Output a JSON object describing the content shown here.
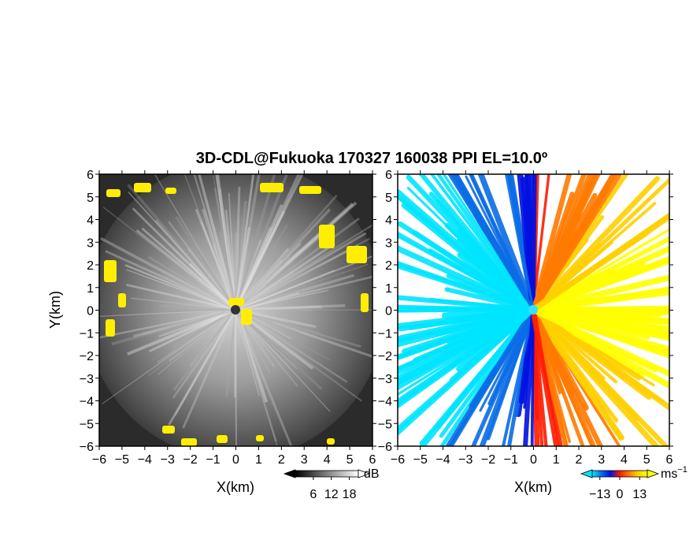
{
  "title": "3D-CDL@Fukuoka 170327 160038 PPI EL=10.0º",
  "chart_data": [
    {
      "type": "heatmap",
      "panel": "left",
      "quantity": "reflectivity / SNR field",
      "xlabel": "X(km)",
      "ylabel": "Y(km)",
      "xlim": [
        -6,
        6
      ],
      "ylim": [
        -6,
        6
      ],
      "xticks": [
        "−6",
        "−5",
        "−4",
        "−3",
        "−2",
        "−1",
        "0",
        "1",
        "2",
        "3",
        "4",
        "5",
        "6"
      ],
      "yticks": [
        "−6",
        "−5",
        "−4",
        "−3",
        "−2",
        "−1",
        "0",
        "1",
        "2",
        "3",
        "4",
        "5",
        "6"
      ],
      "colorbar": {
        "ticks": [
          "6",
          "12",
          "18"
        ],
        "tick_values": [
          6,
          12,
          18
        ],
        "unit": "dB",
        "range": [
          0,
          21
        ],
        "colors": [
          "#000000",
          "#ffffff"
        ]
      },
      "highlight_color": "#ffee00"
    },
    {
      "type": "heatmap",
      "panel": "right",
      "quantity": "radial velocity",
      "xlabel": "X(km)",
      "ylabel": "",
      "xlim": [
        -6,
        6
      ],
      "ylim": [
        -6,
        6
      ],
      "xticks": [
        "−6",
        "−5",
        "−4",
        "−3",
        "−2",
        "−1",
        "0",
        "1",
        "2",
        "3",
        "4",
        "5",
        "6"
      ],
      "yticks": [
        "−6",
        "−5",
        "−4",
        "−3",
        "−2",
        "−1",
        "0",
        "1",
        "2",
        "3",
        "4",
        "5",
        "6"
      ],
      "colorbar": {
        "ticks": [
          "−13",
          "0",
          "13"
        ],
        "tick_values": [
          -13,
          0,
          13
        ],
        "unit": "ms",
        "unit_exp": "−1",
        "range": [
          -18,
          18
        ],
        "colors": [
          "#00e5ff",
          "#0a6ce6",
          "#0010e0",
          "#ff1a00",
          "#ff7a00",
          "#ffd000",
          "#ffff00"
        ]
      }
    }
  ]
}
